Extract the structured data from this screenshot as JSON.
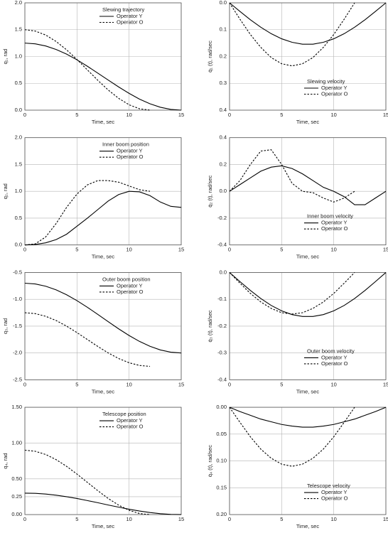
{
  "chart_data": [
    {
      "type": "line",
      "title": "Slewing trajectory",
      "y_label": "q₁, rad",
      "x_label": "Time, sec",
      "legend": "upper right",
      "grid": true,
      "x": [
        0,
        1,
        2,
        3,
        4,
        5,
        6,
        7,
        8,
        9,
        10,
        11,
        12,
        13,
        14,
        15
      ],
      "xlim": [
        0,
        15
      ],
      "xticks": [
        0,
        5,
        10,
        15
      ],
      "ylim": [
        0,
        2
      ],
      "yticks": [
        {
          "value": 0,
          "label": "0.0"
        },
        0.5,
        {
          "value": 1,
          "label": "1.0"
        },
        1.5,
        {
          "value": 2,
          "label": "2.0"
        }
      ],
      "series": [
        {
          "name": "Operator Y",
          "color": "#000000",
          "line_style": "solid",
          "values": [
            1.25,
            1.236,
            1.196,
            1.131,
            1.044,
            0.938,
            0.818,
            0.69,
            0.56,
            0.432,
            0.313,
            0.206,
            0.119,
            0.054,
            0.014,
            0
          ]
        },
        {
          "name": "Operator O",
          "color": "#000000",
          "line_style": "dashed",
          "values": [
            1.5,
            1.474,
            1.4,
            1.28,
            1.125,
            0.944,
            0.75,
            0.556,
            0.375,
            0.22,
            0.1,
            0.026,
            0,
            null,
            null,
            null
          ]
        }
      ]
    },
    {
      "type": "line",
      "title": "Slewing velocity",
      "y_label": "q̇₁ (t), rad/sec",
      "x_label": "Time, sec",
      "legend": "lower right",
      "grid": true,
      "x": [
        0,
        1,
        2,
        3,
        4,
        5,
        6,
        7,
        8,
        9,
        10,
        11,
        12,
        13,
        14,
        15
      ],
      "xlim": [
        0,
        15
      ],
      "xticks": [
        0,
        5,
        10,
        15
      ],
      "ylim": [
        0.4,
        0
      ],
      "yticks": [
        {
          "value": 0,
          "label": "0.0"
        },
        0.1,
        0.2,
        0.3,
        0.4
      ],
      "series": [
        {
          "name": "Operator Y",
          "color": "#000000",
          "line_style": "solid",
          "values": [
            0,
            0.032,
            0.063,
            0.091,
            0.115,
            0.134,
            0.147,
            0.154,
            0.154,
            0.147,
            0.134,
            0.115,
            0.091,
            0.063,
            0.032,
            0
          ]
        },
        {
          "name": "Operator O",
          "color": "#000000",
          "line_style": "dashed",
          "values": [
            0,
            0.061,
            0.118,
            0.166,
            0.204,
            0.227,
            0.235,
            0.227,
            0.204,
            0.166,
            0.118,
            0.061,
            0,
            null,
            null,
            null
          ]
        }
      ]
    },
    {
      "type": "line",
      "title": "Inner boom position",
      "y_label": "q₂, rad",
      "x_label": "Time, sec",
      "legend": "upper center",
      "grid": true,
      "x": [
        0,
        1,
        2,
        3,
        4,
        5,
        6,
        7,
        8,
        9,
        10,
        11,
        12,
        13,
        14,
        15
      ],
      "xlim": [
        0,
        15
      ],
      "xticks": [
        0,
        5,
        10,
        15
      ],
      "ylim": [
        0,
        2
      ],
      "yticks": [
        {
          "value": 0,
          "label": "0.0"
        },
        0.5,
        {
          "value": 1,
          "label": "1.0"
        },
        1.5,
        {
          "value": 2,
          "label": "2.0"
        }
      ],
      "series": [
        {
          "name": "Operator Y",
          "color": "#000000",
          "line_style": "solid",
          "values": [
            0,
            0.01,
            0.04,
            0.1,
            0.2,
            0.35,
            0.5,
            0.66,
            0.82,
            0.94,
            1.0,
            0.99,
            0.92,
            0.8,
            0.72,
            0.7
          ]
        },
        {
          "name": "Operator O",
          "color": "#000000",
          "line_style": "dashed",
          "values": [
            0,
            0.02,
            0.15,
            0.4,
            0.7,
            0.95,
            1.12,
            1.2,
            1.2,
            1.17,
            1.1,
            1.03,
            1.0,
            null,
            null,
            null
          ]
        }
      ]
    },
    {
      "type": "line",
      "title": "Inner boom velocity",
      "y_label": "q̇₂ (t), rad/sec",
      "x_label": "Time, sec",
      "legend": "lower right",
      "grid": true,
      "x": [
        0,
        1,
        2,
        3,
        4,
        5,
        6,
        7,
        8,
        9,
        10,
        11,
        12,
        13,
        14,
        15
      ],
      "xlim": [
        0,
        15
      ],
      "xticks": [
        0,
        5,
        10,
        15
      ],
      "ylim": [
        -0.4,
        0.4
      ],
      "yticks": [
        -0.4,
        -0.2,
        {
          "value": 0,
          "label": "0.0"
        },
        0.2,
        0.4
      ],
      "series": [
        {
          "name": "Operator Y",
          "color": "#000000",
          "line_style": "solid",
          "values": [
            0,
            0.05,
            0.1,
            0.15,
            0.18,
            0.19,
            0.17,
            0.13,
            0.08,
            0.03,
            0,
            -0.04,
            -0.1,
            -0.1,
            -0.05,
            0
          ]
        },
        {
          "name": "Operator O",
          "color": "#000000",
          "line_style": "dashed",
          "values": [
            0,
            0.08,
            0.2,
            0.3,
            0.31,
            0.2,
            0.06,
            0,
            -0.01,
            -0.05,
            -0.08,
            -0.05,
            0,
            null,
            null,
            null
          ]
        }
      ]
    },
    {
      "type": "line",
      "title": "Outer boom position",
      "y_label": "q₃, rad",
      "x_label": "Time, sec",
      "legend": "upper center",
      "grid": true,
      "x": [
        0,
        1,
        2,
        3,
        4,
        5,
        6,
        7,
        8,
        9,
        10,
        11,
        12,
        13,
        14,
        15
      ],
      "xlim": [
        0,
        15
      ],
      "xticks": [
        0,
        5,
        10,
        15
      ],
      "ylim": [
        -2.5,
        -0.5
      ],
      "yticks": [
        -2.5,
        {
          "value": -2,
          "label": "-2.0"
        },
        -1.5,
        {
          "value": -1,
          "label": "-1.0"
        },
        -0.5
      ],
      "series": [
        {
          "name": "Operator Y",
          "color": "#000000",
          "line_style": "solid",
          "values": [
            -0.7,
            -0.714,
            -0.756,
            -0.824,
            -0.915,
            -1.025,
            -1.149,
            -1.282,
            -1.418,
            -1.551,
            -1.675,
            -1.785,
            -1.876,
            -1.944,
            -1.986,
            -2.0
          ]
        },
        {
          "name": "Operator O",
          "color": "#000000",
          "line_style": "dashed",
          "values": [
            -1.25,
            -1.267,
            -1.317,
            -1.396,
            -1.5,
            -1.621,
            -1.75,
            -1.879,
            -2.0,
            -2.104,
            -2.183,
            -2.233,
            -2.25,
            null,
            null,
            null
          ]
        }
      ]
    },
    {
      "type": "line",
      "title": "Outer boom velocity",
      "y_label": "q̇₃ (t), rad/sec",
      "x_label": "Time, sec",
      "legend": "lower right",
      "grid": true,
      "x": [
        0,
        1,
        2,
        3,
        4,
        5,
        6,
        7,
        8,
        9,
        10,
        11,
        12,
        13,
        14,
        15
      ],
      "xlim": [
        0,
        15
      ],
      "xticks": [
        0,
        5,
        10,
        15
      ],
      "ylim": [
        -0.4,
        0
      ],
      "yticks": [
        -0.4,
        -0.3,
        -0.2,
        -0.1,
        {
          "value": 0,
          "label": "0.0"
        }
      ],
      "series": [
        {
          "name": "Operator Y",
          "color": "#000000",
          "line_style": "solid",
          "values": [
            0,
            -0.034,
            -0.067,
            -0.097,
            -0.123,
            -0.143,
            -0.157,
            -0.164,
            -0.164,
            -0.157,
            -0.143,
            -0.123,
            -0.097,
            -0.067,
            -0.034,
            0
          ]
        },
        {
          "name": "Operator O",
          "color": "#000000",
          "line_style": "dashed",
          "values": [
            0,
            -0.04,
            -0.078,
            -0.11,
            -0.134,
            -0.15,
            -0.155,
            -0.15,
            -0.134,
            -0.11,
            -0.078,
            -0.04,
            0,
            null,
            null,
            null
          ]
        }
      ]
    },
    {
      "type": "line",
      "title": "Telescope position",
      "y_label": "q₄, rad",
      "x_label": "Time, sec",
      "legend": "upper center",
      "grid": true,
      "x": [
        0,
        1,
        2,
        3,
        4,
        5,
        6,
        7,
        8,
        9,
        10,
        11,
        12,
        13,
        14,
        15
      ],
      "xlim": [
        0,
        15
      ],
      "xticks": [
        0,
        5,
        10,
        15
      ],
      "ylim": [
        0,
        1.5
      ],
      "yticks": [
        {
          "value": 0,
          "label": "0.00"
        },
        0.25,
        {
          "value": 0.5,
          "label": "0.50"
        },
        {
          "value": 1,
          "label": "1.00"
        },
        {
          "value": 1.5,
          "label": "1.50"
        }
      ],
      "series": [
        {
          "name": "Operator Y",
          "color": "#000000",
          "line_style": "solid",
          "values": [
            0.3,
            0.297,
            0.287,
            0.271,
            0.25,
            0.225,
            0.196,
            0.166,
            0.134,
            0.104,
            0.075,
            0.05,
            0.029,
            0.013,
            0.003,
            0
          ]
        },
        {
          "name": "Operator O",
          "color": "#000000",
          "line_style": "dashed",
          "values": [
            0.9,
            0.885,
            0.84,
            0.768,
            0.675,
            0.566,
            0.45,
            0.334,
            0.225,
            0.132,
            0.06,
            0.015,
            0,
            null,
            null,
            null
          ]
        }
      ]
    },
    {
      "type": "line",
      "title": "Telescope velocity",
      "y_label": "q̇₄ (t), rad/sec",
      "x_label": "Time, sec",
      "legend": "lower right",
      "grid": true,
      "x": [
        0,
        1,
        2,
        3,
        4,
        5,
        6,
        7,
        8,
        9,
        10,
        11,
        12,
        13,
        14,
        15
      ],
      "xlim": [
        0,
        15
      ],
      "xticks": [
        0,
        5,
        10,
        15
      ],
      "ylim": [
        0.2,
        0
      ],
      "yticks": [
        {
          "value": 0,
          "label": "0.00"
        },
        0.05,
        {
          "value": 0.1,
          "label": "0.10"
        },
        0.15,
        {
          "value": 0.2,
          "label": "0.20"
        }
      ],
      "series": [
        {
          "name": "Operator Y",
          "color": "#000000",
          "line_style": "solid",
          "values": [
            0,
            0.008,
            0.015,
            0.022,
            0.027,
            0.032,
            0.035,
            0.037,
            0.037,
            0.035,
            0.032,
            0.027,
            0.022,
            0.015,
            0.008,
            0
          ]
        },
        {
          "name": "Operator O",
          "color": "#000000",
          "line_style": "dashed",
          "values": [
            0,
            0.028,
            0.055,
            0.078,
            0.095,
            0.106,
            0.11,
            0.106,
            0.095,
            0.078,
            0.055,
            0.028,
            0,
            null,
            null,
            null
          ]
        }
      ]
    }
  ]
}
